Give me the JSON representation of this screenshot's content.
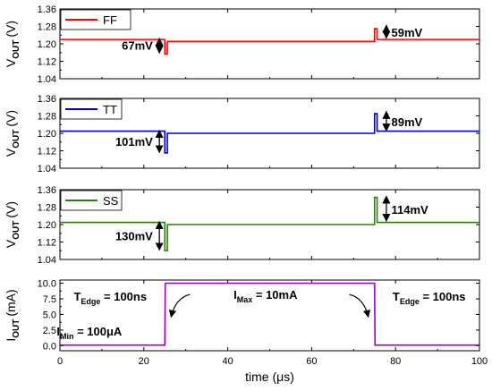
{
  "chart_data": [
    {
      "type": "line",
      "panel": "FF",
      "ylabel_main": "V",
      "ylabel_sub": "OUT",
      "ylabel_unit": "(V)",
      "ylim": [
        1.04,
        1.36
      ],
      "yticks": [
        "1.04",
        "1.12",
        "1.20",
        "1.28",
        "1.36"
      ],
      "xlim": [
        0,
        100
      ],
      "series": [
        {
          "name": "FF",
          "color": "#ff0000",
          "x": [
            0,
            25,
            25,
            25.6,
            25.6,
            75,
            75,
            75.6,
            75.6,
            100
          ],
          "y": [
            1.22,
            1.22,
            1.153,
            1.153,
            1.211,
            1.211,
            1.27,
            1.27,
            1.22,
            1.22
          ]
        }
      ],
      "annotations": [
        {
          "text": "67mV",
          "x": 23,
          "y": 1.19
        },
        {
          "text": "59mV",
          "x": 79,
          "y": 1.25
        }
      ]
    },
    {
      "type": "line",
      "panel": "TT",
      "ylabel_main": "V",
      "ylabel_sub": "OUT",
      "ylabel_unit": "(V)",
      "ylim": [
        1.04,
        1.36
      ],
      "yticks": [
        "1.04",
        "1.12",
        "1.20",
        "1.28",
        "1.36"
      ],
      "xlim": [
        0,
        100
      ],
      "series": [
        {
          "name": "TT",
          "color": "#0000cc",
          "x": [
            0,
            25,
            25,
            25.6,
            25.6,
            75,
            75,
            75.6,
            75.6,
            100
          ],
          "y": [
            1.21,
            1.21,
            1.11,
            1.11,
            1.2,
            1.2,
            1.29,
            1.29,
            1.21,
            1.21
          ]
        }
      ],
      "annotations": [
        {
          "text": "101mV",
          "x": 23,
          "y": 1.16
        },
        {
          "text": "89mV",
          "x": 79,
          "y": 1.25
        }
      ]
    },
    {
      "type": "line",
      "panel": "SS",
      "ylabel_main": "V",
      "ylabel_sub": "OUT",
      "ylabel_unit": "(V)",
      "ylim": [
        1.04,
        1.36
      ],
      "yticks": [
        "1.04",
        "1.12",
        "1.20",
        "1.28",
        "1.36"
      ],
      "xlim": [
        0,
        100
      ],
      "series": [
        {
          "name": "SS",
          "color": "#2e7d0f",
          "x": [
            0,
            25,
            25,
            25.6,
            25.6,
            75,
            75,
            75.6,
            75.6,
            100
          ],
          "y": [
            1.21,
            1.21,
            1.08,
            1.08,
            1.2,
            1.2,
            1.325,
            1.325,
            1.21,
            1.21
          ]
        }
      ],
      "annotations": [
        {
          "text": "130mV",
          "x": 23,
          "y": 1.145
        },
        {
          "text": "114mV",
          "x": 79,
          "y": 1.265
        }
      ]
    },
    {
      "type": "line",
      "panel": "IOUT",
      "ylabel_main": "I",
      "ylabel_sub": "OUT",
      "ylabel_unit": "(mA)",
      "xlabel": "time (μs)",
      "ylim": [
        -0.8,
        10.5
      ],
      "yticks": [
        "0.0",
        "2.5",
        "5.0",
        "7.5",
        "10.0"
      ],
      "xlim": [
        0,
        100
      ],
      "xticks": [
        "0",
        "20",
        "40",
        "60",
        "80",
        "100"
      ],
      "series": [
        {
          "name": "IOUT",
          "color": "#9900cc",
          "x": [
            0,
            25,
            25.1,
            75,
            75.1,
            100
          ],
          "y": [
            0.1,
            0.1,
            10,
            10,
            0.1,
            0.1
          ]
        }
      ],
      "annotations": [
        {
          "main": "T",
          "sub": "Edge",
          "rest": " = 100ns",
          "x": 12,
          "y": 7.2
        },
        {
          "main": "I",
          "sub": "Min",
          "rest": " = 100μA",
          "x": 7,
          "y": 1.6
        },
        {
          "main": "I",
          "sub": "Max",
          "rest": " = 10mA",
          "x": 49,
          "y": 7.5
        },
        {
          "main": "T",
          "sub": "Edge",
          "rest": " = 100ns",
          "x": 88,
          "y": 7.2
        }
      ]
    }
  ]
}
